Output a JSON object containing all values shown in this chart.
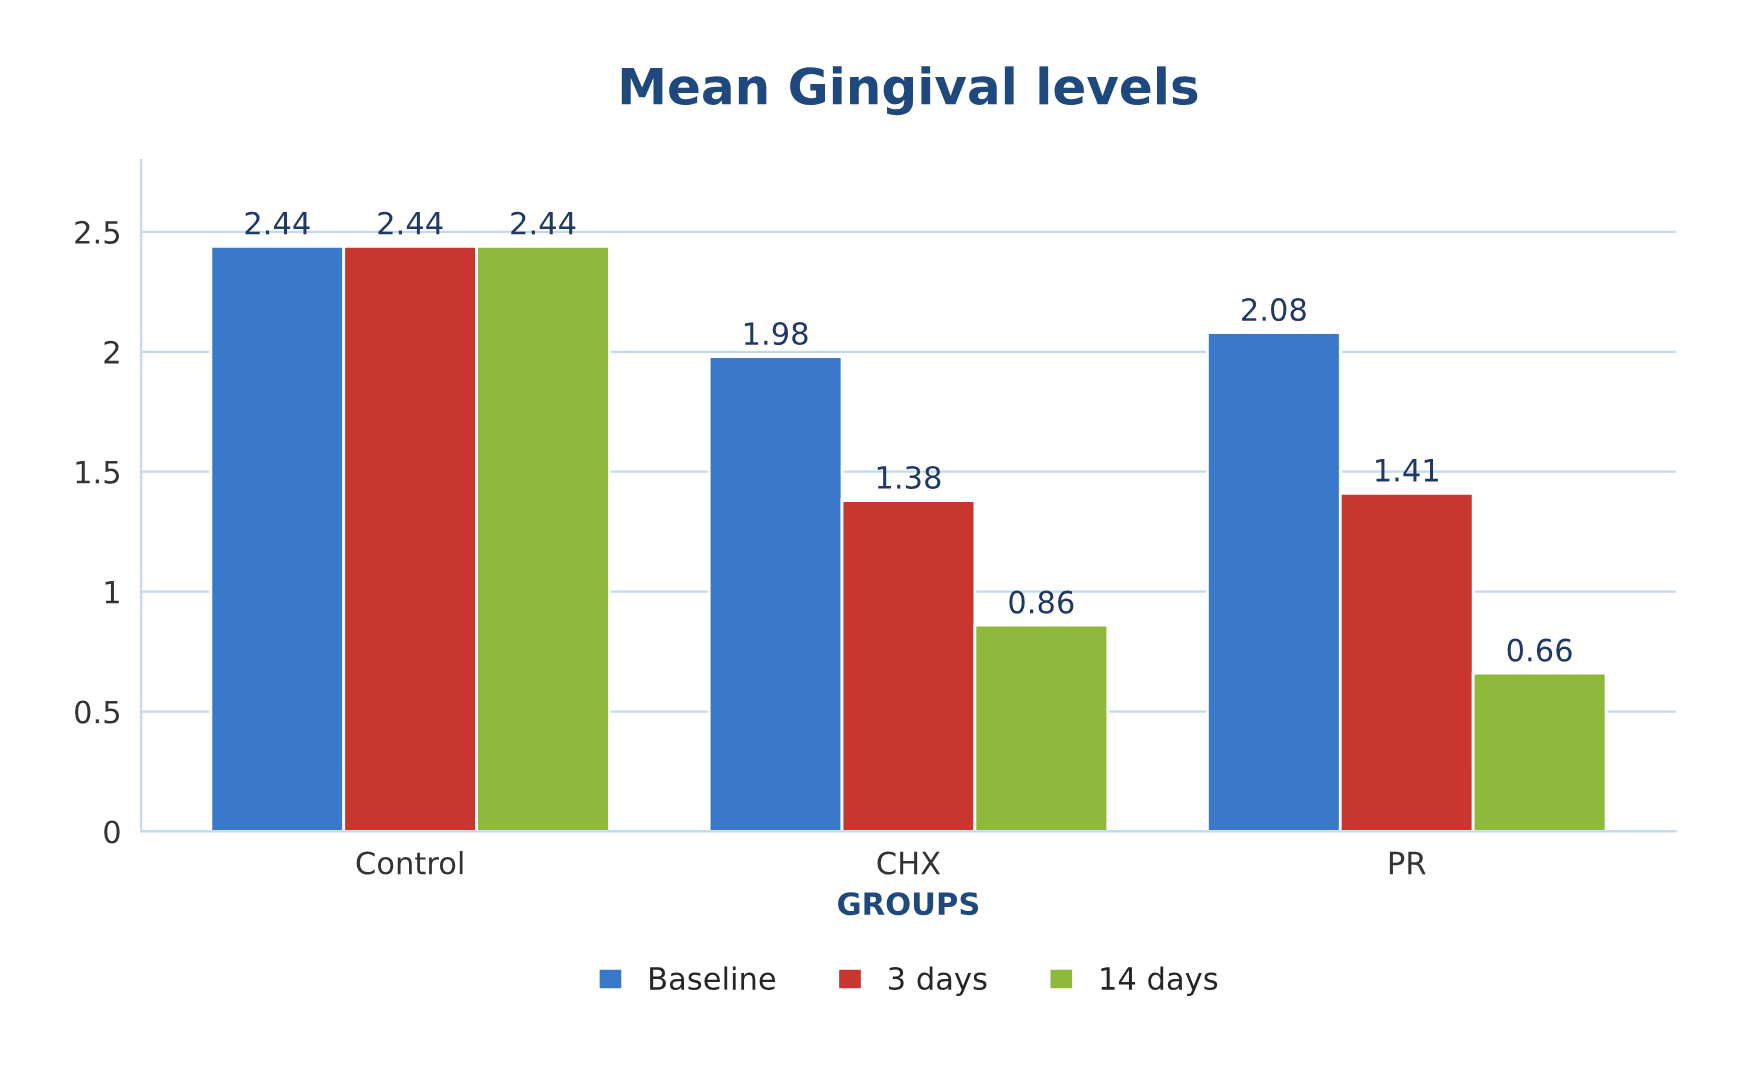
{
  "chart_data": {
    "type": "bar",
    "title": "Mean Gingival levels",
    "xlabel": "GROUPS",
    "categories": [
      "Control",
      "CHX",
      "PR"
    ],
    "series": [
      {
        "name": "Baseline",
        "color": "#3a78c9",
        "values": [
          2.44,
          1.98,
          2.08
        ]
      },
      {
        "name": "3 days",
        "color": "#c9352f",
        "values": [
          2.44,
          1.38,
          1.41
        ]
      },
      {
        "name": "14 days",
        "color": "#8db93c",
        "values": [
          2.44,
          0.86,
          0.66
        ]
      }
    ],
    "ylim": [
      0,
      2.8
    ],
    "yticks": [
      0,
      0.5,
      1,
      1.5,
      2,
      2.5
    ],
    "grid": "y",
    "legend": "bottom",
    "data_labels": true
  }
}
